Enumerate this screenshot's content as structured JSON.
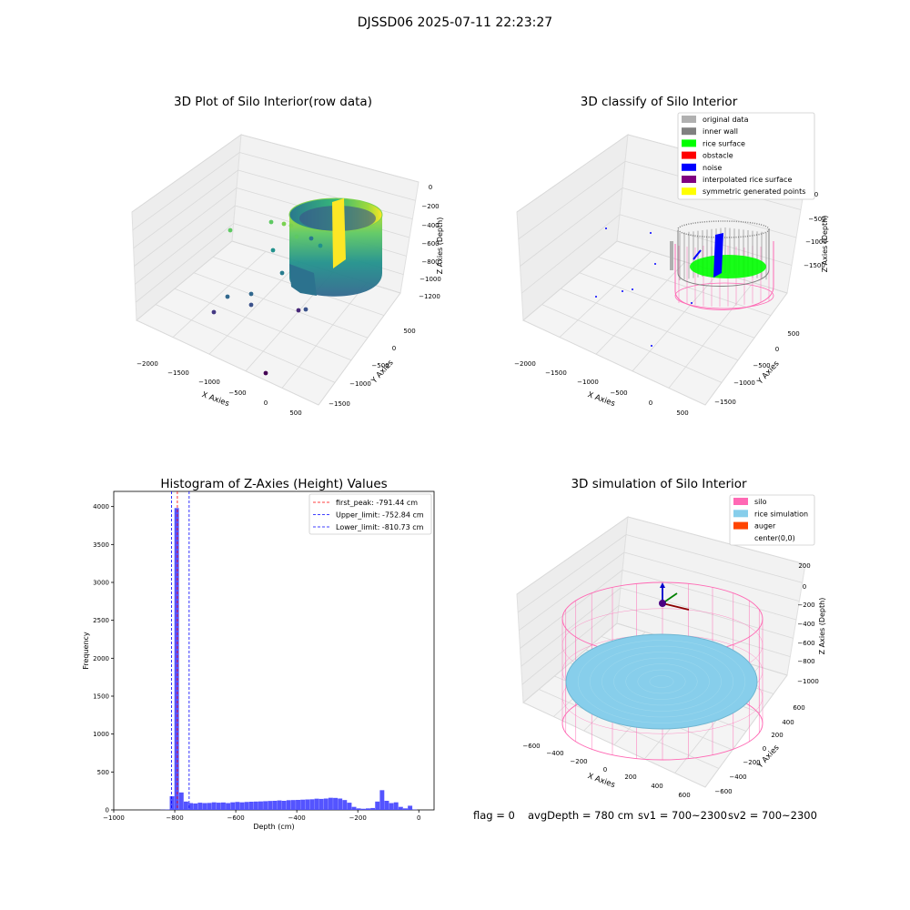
{
  "suptitle": "DJSSD06 2025-07-11 22:23:27",
  "footer": {
    "flag": "flag = 0",
    "avg": "avgDepth = 780 cm",
    "sv1": "sv1 = 700~2300",
    "sv2": "sv2 = 700~2300"
  },
  "colors": {
    "original": "#b0b0b0",
    "inner_wall": "#808080",
    "rice": "#00ff00",
    "obstacle": "#ff0000",
    "noise": "#0000ff",
    "interpolated": "#800080",
    "symmetric": "#ffff00",
    "silo": "#ff69b4",
    "rice_sim": "#87ceeb",
    "auger": "#ff4500",
    "hist_bar": "#4b4bff"
  },
  "chart_data": [
    {
      "type": "scatter3d",
      "title": "3D Plot of Silo Interior(row data)",
      "xlabel": "X Axies",
      "ylabel": "Y Axies",
      "zlabel": "Z Axies (Depth)",
      "xticks": [
        "−2000",
        "−1500",
        "−1000",
        "−500",
        "0",
        "500"
      ],
      "yticks": [
        "500",
        "0",
        "−500",
        "−1000",
        "−1500"
      ],
      "zticks": [
        "0",
        "−200",
        "−400",
        "−600",
        "−800",
        "−1000",
        "−1200"
      ],
      "colormap": "viridis"
    },
    {
      "type": "scatter3d",
      "title": "3D classify of Silo Interior",
      "xlabel": "X Axies",
      "ylabel": "Y Axies",
      "zlabel": "Z Axies (Depth)",
      "xticks": [
        "−2000",
        "−1500",
        "−1000",
        "−500",
        "0",
        "500"
      ],
      "yticks": [
        "500",
        "0",
        "−500",
        "−1000",
        "−1500"
      ],
      "zticks": [
        "0",
        "−500",
        "−1000",
        "−1500"
      ],
      "legend": [
        "original data",
        "inner wall",
        "rice surface",
        "obstacle",
        "noise",
        "interpolated rice surface",
        "symmetric generated points"
      ],
      "legend_placement": "top-right"
    },
    {
      "type": "bar",
      "title": "Histogram of Z-Axies (Height) Values",
      "xlabel": "Depth (cm)",
      "ylabel": "Frequency",
      "xlim": [
        -1000,
        50
      ],
      "ylim": [
        0,
        4200
      ],
      "xticks": [
        -1000,
        -800,
        -600,
        -400,
        -200,
        0
      ],
      "xtick_labels": [
        "−1000",
        "−800",
        "−600",
        "−400",
        "−200",
        "0"
      ],
      "yticks": [
        0,
        500,
        1000,
        1500,
        2000,
        2500,
        3000,
        3500,
        4000
      ],
      "bin_width": 15.3,
      "bins": [
        [
          -992.3,
          0
        ],
        [
          -977.0,
          0
        ],
        [
          -961.7,
          0
        ],
        [
          -946.4,
          0
        ],
        [
          -931.1,
          0
        ],
        [
          -915.8,
          0
        ],
        [
          -900.5,
          0
        ],
        [
          -885.2,
          0
        ],
        [
          -869.9,
          0
        ],
        [
          -854.6,
          0
        ],
        [
          -839.3,
          3
        ],
        [
          -824.0,
          5
        ],
        [
          -808.7,
          180
        ],
        [
          -793.4,
          3980
        ],
        [
          -778.1,
          230
        ],
        [
          -762.8,
          110
        ],
        [
          -747.5,
          90
        ],
        [
          -732.2,
          85
        ],
        [
          -716.9,
          95
        ],
        [
          -701.6,
          90
        ],
        [
          -686.3,
          92
        ],
        [
          -671.0,
          100
        ],
        [
          -655.7,
          95
        ],
        [
          -640.4,
          98
        ],
        [
          -625.1,
          90
        ],
        [
          -609.8,
          100
        ],
        [
          -594.5,
          105
        ],
        [
          -579.2,
          100
        ],
        [
          -563.9,
          105
        ],
        [
          -548.6,
          108
        ],
        [
          -533.3,
          110
        ],
        [
          -518.0,
          112
        ],
        [
          -502.7,
          115
        ],
        [
          -487.4,
          118
        ],
        [
          -472.1,
          120
        ],
        [
          -456.8,
          125
        ],
        [
          -441.5,
          120
        ],
        [
          -426.2,
          128
        ],
        [
          -410.9,
          130
        ],
        [
          -395.6,
          132
        ],
        [
          -380.3,
          135
        ],
        [
          -365.0,
          138
        ],
        [
          -349.7,
          140
        ],
        [
          -334.4,
          148
        ],
        [
          -319.1,
          145
        ],
        [
          -303.8,
          150
        ],
        [
          -288.5,
          160
        ],
        [
          -273.2,
          158
        ],
        [
          -257.9,
          150
        ],
        [
          -242.6,
          130
        ],
        [
          -227.3,
          95
        ],
        [
          -212.0,
          40
        ],
        [
          -196.7,
          20
        ],
        [
          -181.4,
          15
        ],
        [
          -166.1,
          20
        ],
        [
          -150.8,
          25
        ],
        [
          -135.5,
          110
        ],
        [
          -120.2,
          260
        ],
        [
          -104.9,
          120
        ],
        [
          -89.6,
          90
        ],
        [
          -74.3,
          100
        ],
        [
          -59.0,
          40
        ],
        [
          -43.7,
          20
        ],
        [
          -28.4,
          55
        ],
        [
          -13.1,
          5
        ]
      ],
      "vlines": [
        {
          "x": -791.44,
          "label": "first_peak: -791.44 cm",
          "color": "#ff0000"
        },
        {
          "x": -752.84,
          "label": "Upper_limit: -752.84 cm",
          "color": "#0000ff"
        },
        {
          "x": -810.73,
          "label": "Lower_limit: -810.73 cm",
          "color": "#0000ff"
        }
      ],
      "legend_placement": "top-right"
    },
    {
      "type": "surface3d",
      "title": "3D simulation of Silo Interior",
      "xlabel": "X Axies",
      "ylabel": "Y Axies",
      "zlabel": "Z Axies (Depth)",
      "xticks": [
        "−600",
        "−400",
        "−200",
        "0",
        "200",
        "400",
        "600"
      ],
      "yticks": [
        "600",
        "400",
        "200",
        "0",
        "−200",
        "−400",
        "−600"
      ],
      "zticks": [
        "200",
        "0",
        "−200",
        "−400",
        "−600",
        "−800",
        "−1000"
      ],
      "legend": [
        "silo",
        "rice simulation",
        "auger",
        "center(0,0)"
      ],
      "legend_placement": "top-right"
    }
  ]
}
